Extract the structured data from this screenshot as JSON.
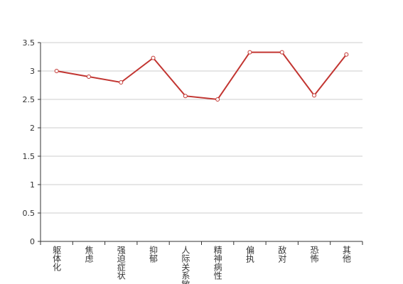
{
  "chart_data": {
    "type": "line",
    "categories": [
      "躯体化",
      "焦虑",
      "强迫症状",
      "抑郁",
      "人际关系敏感",
      "精神病性",
      "偏执",
      "敌对",
      "恐怖",
      "其他"
    ],
    "values": [
      3.0,
      2.9,
      2.8,
      3.23,
      2.56,
      2.5,
      3.33,
      3.33,
      2.57,
      3.29
    ],
    "color": "#c23531",
    "ylim": [
      0,
      3.5
    ],
    "yticks": [
      0,
      0.5,
      1,
      1.5,
      2,
      2.5,
      3,
      3.5
    ],
    "grid": true
  }
}
